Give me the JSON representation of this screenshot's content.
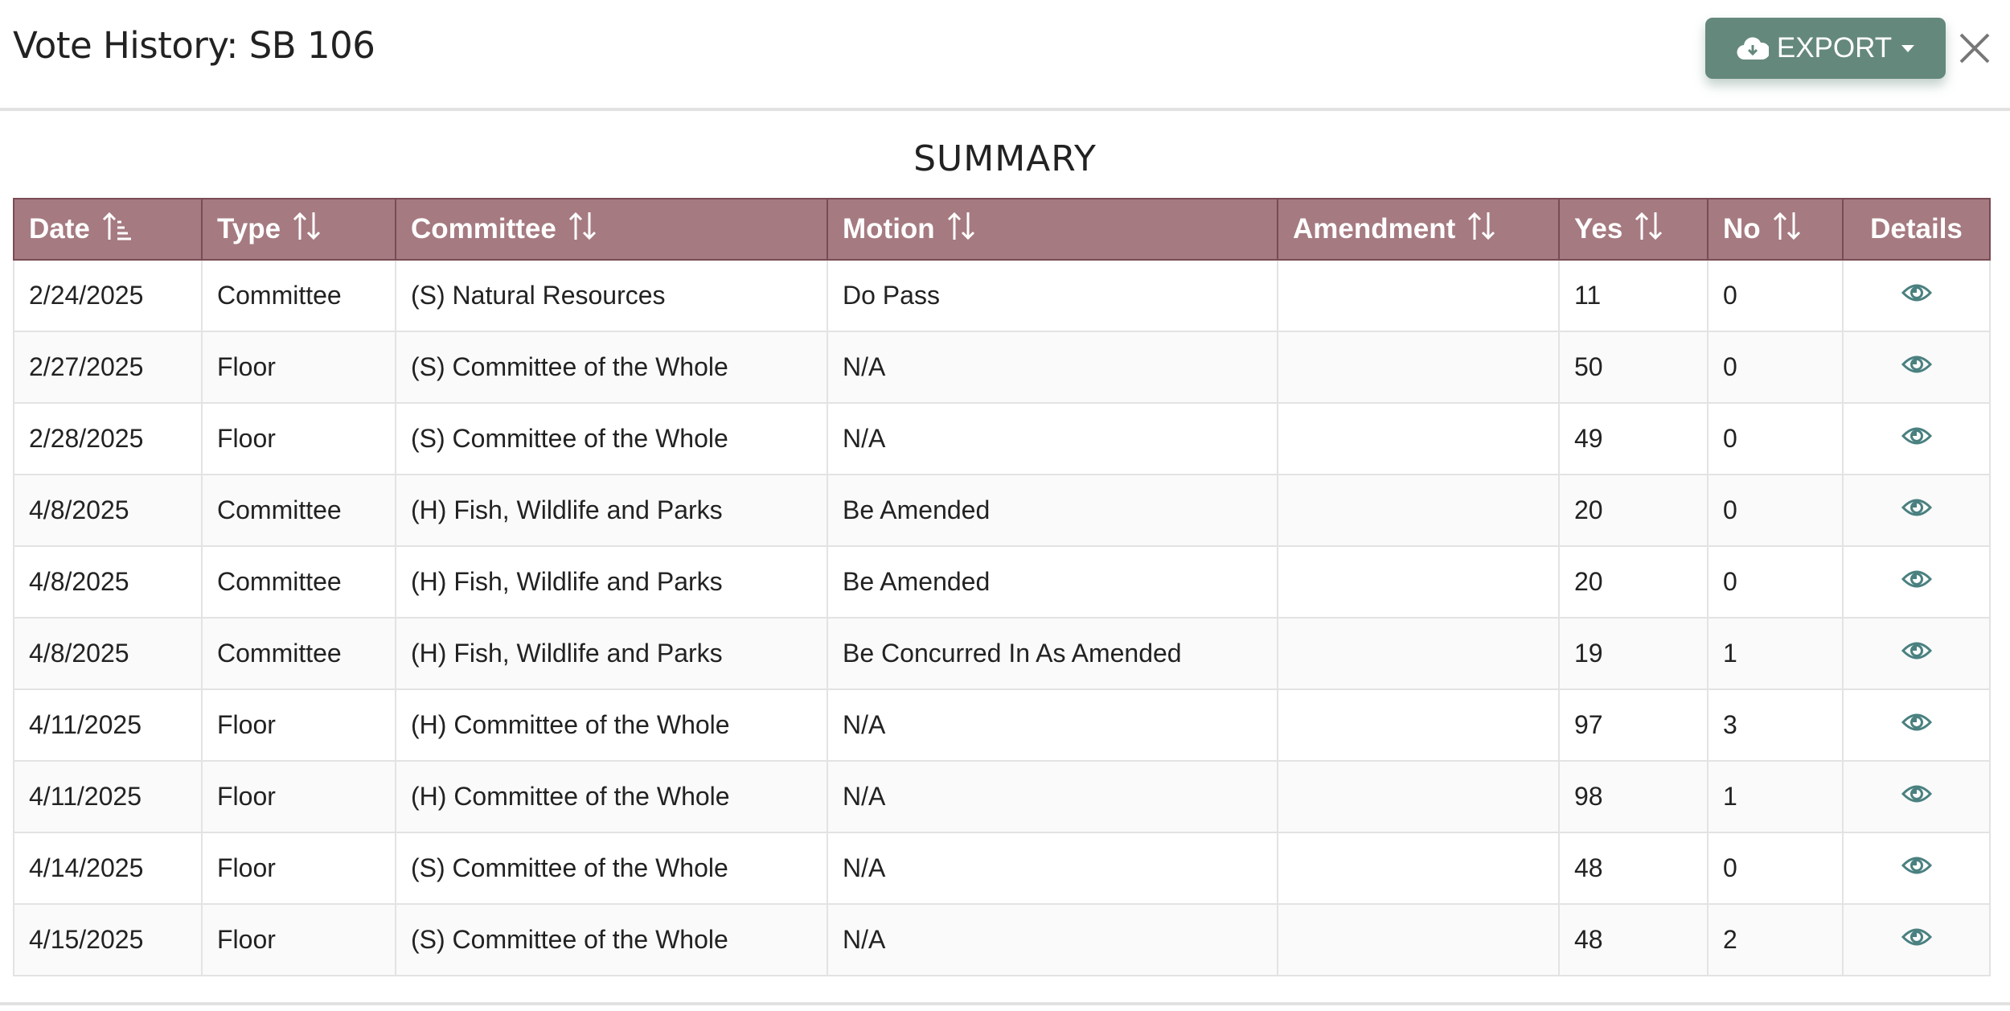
{
  "header": {
    "title": "Vote History: SB 106",
    "export_label": "EXPORT",
    "export_icon": "cloud-download-icon",
    "close_icon": "close-icon"
  },
  "summary_title": "SUMMARY",
  "colors": {
    "header_bg": "#a57a80",
    "export_bg": "#65887c",
    "eye_icon": "#4a8080"
  },
  "table": {
    "columns": [
      {
        "label": "Date",
        "sort": "ascending"
      },
      {
        "label": "Type",
        "sort": "unsorted"
      },
      {
        "label": "Committee",
        "sort": "unsorted"
      },
      {
        "label": "Motion",
        "sort": "unsorted"
      },
      {
        "label": "Amendment",
        "sort": "unsorted"
      },
      {
        "label": "Yes",
        "sort": "unsorted"
      },
      {
        "label": "No",
        "sort": "unsorted"
      },
      {
        "label": "Details",
        "sort": "none"
      }
    ],
    "rows": [
      {
        "date": "2/24/2025",
        "type": "Committee",
        "committee": "(S) Natural Resources",
        "motion": "Do Pass",
        "amendment": "",
        "yes": "11",
        "no": "0"
      },
      {
        "date": "2/27/2025",
        "type": "Floor",
        "committee": "(S) Committee of the Whole",
        "motion": "N/A",
        "amendment": "",
        "yes": "50",
        "no": "0"
      },
      {
        "date": "2/28/2025",
        "type": "Floor",
        "committee": "(S) Committee of the Whole",
        "motion": "N/A",
        "amendment": "",
        "yes": "49",
        "no": "0"
      },
      {
        "date": "4/8/2025",
        "type": "Committee",
        "committee": "(H) Fish, Wildlife and Parks",
        "motion": "Be Amended",
        "amendment": "",
        "yes": "20",
        "no": "0"
      },
      {
        "date": "4/8/2025",
        "type": "Committee",
        "committee": "(H) Fish, Wildlife and Parks",
        "motion": "Be Amended",
        "amendment": "",
        "yes": "20",
        "no": "0"
      },
      {
        "date": "4/8/2025",
        "type": "Committee",
        "committee": "(H) Fish, Wildlife and Parks",
        "motion": "Be Concurred In As Amended",
        "amendment": "",
        "yes": "19",
        "no": "1"
      },
      {
        "date": "4/11/2025",
        "type": "Floor",
        "committee": "(H) Committee of the Whole",
        "motion": "N/A",
        "amendment": "",
        "yes": "97",
        "no": "3"
      },
      {
        "date": "4/11/2025",
        "type": "Floor",
        "committee": "(H) Committee of the Whole",
        "motion": "N/A",
        "amendment": "",
        "yes": "98",
        "no": "1"
      },
      {
        "date": "4/14/2025",
        "type": "Floor",
        "committee": "(S) Committee of the Whole",
        "motion": "N/A",
        "amendment": "",
        "yes": "48",
        "no": "0"
      },
      {
        "date": "4/15/2025",
        "type": "Floor",
        "committee": "(S) Committee of the Whole",
        "motion": "N/A",
        "amendment": "",
        "yes": "48",
        "no": "2"
      }
    ]
  }
}
